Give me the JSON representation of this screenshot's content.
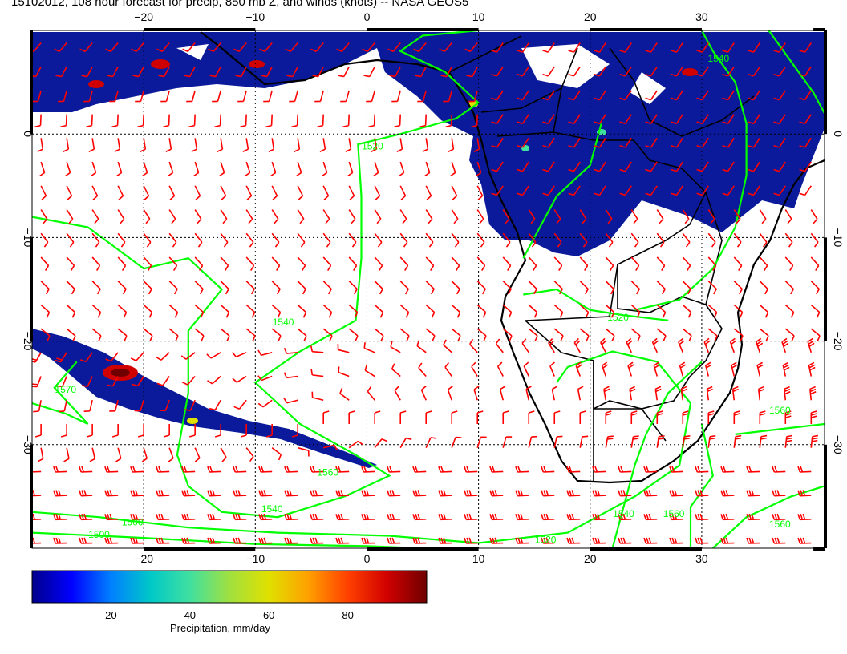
{
  "title": "15102012, 108 hour forecast for precip, 850 mb Z, and winds (knots) -- NASA GEOS5",
  "map": {
    "lon_range": [
      -30,
      41
    ],
    "lat_range": [
      -40,
      10
    ],
    "lon_ticks": [
      -20,
      -10,
      0,
      10,
      20,
      30
    ],
    "lat_ticks": [
      0,
      -10,
      -20,
      -30
    ],
    "lon_tick_labels": [
      "−20",
      "−10",
      "0",
      "10",
      "20",
      "30"
    ],
    "lat_tick_labels": [
      "0",
      "−10",
      "−20",
      "−30"
    ],
    "grid_spacing_deg": 10,
    "colors": {
      "wind_barb": "#ff0000",
      "contour": "#00ff00",
      "coastline": "#000000",
      "precip_low": "#0a1a9a",
      "precip_high": "#8b0000"
    },
    "contour_labels": [
      {
        "text": "1520",
        "lon": 0.5,
        "lat": -1.5
      },
      {
        "text": "1540",
        "lon": -7.5,
        "lat": -18.5
      },
      {
        "text": "1560",
        "lon": -3.5,
        "lat": -33.0
      },
      {
        "text": "1540",
        "lon": -8.5,
        "lat": -36.5
      },
      {
        "text": "1500",
        "lon": -21.0,
        "lat": -37.8
      },
      {
        "text": "1500",
        "lon": -24.0,
        "lat": -39.0
      },
      {
        "text": "1520",
        "lon": 22.5,
        "lat": -18.0
      },
      {
        "text": "1560",
        "lon": 37.0,
        "lat": -27.0
      },
      {
        "text": "1560",
        "lon": 37.0,
        "lat": -38.0
      },
      {
        "text": "1540",
        "lon": 23.0,
        "lat": -37.0
      },
      {
        "text": "1560",
        "lon": 27.5,
        "lat": -37.0
      },
      {
        "text": "1520",
        "lon": 16.0,
        "lat": -39.5
      },
      {
        "text": "1540",
        "lon": 31.5,
        "lat": 7.0
      },
      {
        "text": "1570",
        "lon": -27.0,
        "lat": -25.0
      }
    ]
  },
  "colorbar": {
    "label": "Precipitation, mm/day",
    "min": 0,
    "max": 100,
    "ticks": [
      20,
      40,
      60,
      80
    ],
    "colors": [
      "#00008b",
      "#0000ff",
      "#0080ff",
      "#00c8c8",
      "#40e0a0",
      "#a0e040",
      "#e0e000",
      "#ffa000",
      "#ff4000",
      "#d00000",
      "#700000"
    ]
  }
}
